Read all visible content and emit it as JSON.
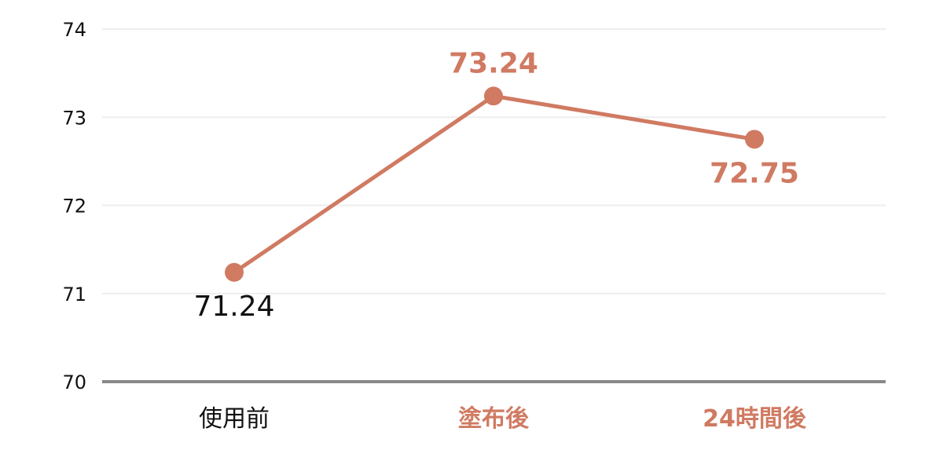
{
  "chart_data": {
    "type": "line",
    "categories": [
      "使用前",
      "塗布後",
      "24時間後"
    ],
    "values": [
      71.24,
      73.24,
      72.75
    ],
    "data_labels": [
      "71.24",
      "73.24",
      "72.75"
    ],
    "ylim": [
      70,
      74
    ],
    "yticks": [
      "70",
      "71",
      "72",
      "73",
      "74"
    ],
    "grid": true,
    "title": "",
    "xlabel": "",
    "ylabel": "",
    "colors": {
      "series": "#d07a62",
      "highlight_text": "#d07a62",
      "default_text": "#111111",
      "grid": "#eeeeee",
      "baseline": "#888888"
    },
    "highlighted_categories": [
      1,
      2
    ]
  }
}
